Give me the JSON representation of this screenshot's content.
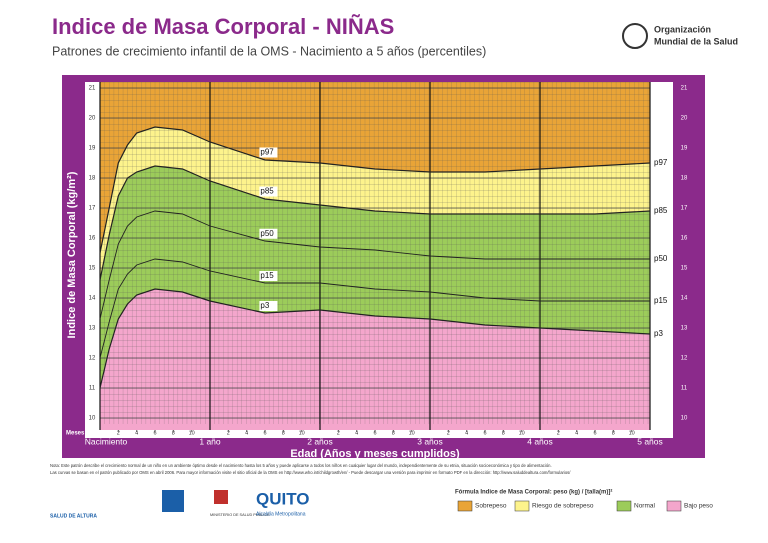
{
  "header": {
    "title": "Indice de Masa Corporal - NIÑAS",
    "subtitle": "Patrones de crecimiento infantil de la OMS - Nacimiento a 5 años (percentiles)",
    "org": [
      "Organización",
      "Mundial de la Salud"
    ]
  },
  "chart_data": {
    "type": "line",
    "y_label": "Indice de Masa Corporal (kg/m²)",
    "x_label": "Edad (Años y meses cumplidos)",
    "month_label": "Meses",
    "x": [
      0,
      1,
      2,
      3,
      4,
      6,
      9,
      12,
      18,
      24,
      30,
      36,
      42,
      48,
      54,
      60
    ],
    "xlim": [
      0,
      60
    ],
    "ylim": [
      10,
      21
    ],
    "xticks": [
      {
        "value": 0,
        "label": "Nacimiento"
      },
      {
        "value": 12,
        "label": "1 año"
      },
      {
        "value": 24,
        "label": "2 años"
      },
      {
        "value": 36,
        "label": "3 años"
      },
      {
        "value": 48,
        "label": "4 años"
      },
      {
        "value": 60,
        "label": "5 años"
      }
    ],
    "month_ticks": [
      2,
      4,
      6,
      8,
      10,
      {
        "value": 14,
        "label": "2"
      },
      {
        "value": 16,
        "label": "4"
      },
      {
        "value": 18,
        "label": "6"
      },
      {
        "value": 20,
        "label": "8"
      },
      {
        "value": 22,
        "label": "10"
      },
      {
        "value": 26,
        "label": "2"
      },
      {
        "value": 28,
        "label": "4"
      },
      {
        "value": 30,
        "label": "6"
      },
      {
        "value": 32,
        "label": "8"
      },
      {
        "value": 34,
        "label": "10"
      },
      {
        "value": 38,
        "label": "2"
      },
      {
        "value": 40,
        "label": "4"
      },
      {
        "value": 42,
        "label": "6"
      },
      {
        "value": 44,
        "label": "8"
      },
      {
        "value": 46,
        "label": "10"
      },
      {
        "value": 50,
        "label": "2"
      },
      {
        "value": 52,
        "label": "4"
      },
      {
        "value": 54,
        "label": "6"
      },
      {
        "value": 56,
        "label": "8"
      },
      {
        "value": 58,
        "label": "10"
      }
    ],
    "yticks": [
      10,
      11,
      12,
      13,
      14,
      15,
      16,
      17,
      18,
      19,
      20,
      21
    ],
    "background": "#e9a437",
    "grid": true,
    "series": [
      {
        "name": "p97",
        "color": "#222222",
        "fill": "#fdf38c",
        "values": [
          15.5,
          17.0,
          18.5,
          19.1,
          19.5,
          19.7,
          19.6,
          19.2,
          18.6,
          18.5,
          18.3,
          18.2,
          18.2,
          18.3,
          18.4,
          18.5
        ]
      },
      {
        "name": "p85",
        "color": "#222222",
        "fill": "#9ccc5a",
        "values": [
          14.6,
          16.1,
          17.4,
          18.0,
          18.2,
          18.4,
          18.3,
          17.9,
          17.3,
          17.1,
          16.9,
          16.8,
          16.8,
          16.8,
          16.8,
          16.9
        ]
      },
      {
        "name": "p50",
        "color": "#222222",
        "values": [
          13.3,
          14.6,
          15.8,
          16.4,
          16.7,
          16.9,
          16.8,
          16.4,
          15.9,
          15.7,
          15.6,
          15.4,
          15.3,
          15.3,
          15.3,
          15.3
        ]
      },
      {
        "name": "p15",
        "color": "#222222",
        "values": [
          12.0,
          13.2,
          14.3,
          14.8,
          15.1,
          15.3,
          15.2,
          14.9,
          14.5,
          14.5,
          14.3,
          14.2,
          14.0,
          13.9,
          13.9,
          13.9
        ]
      },
      {
        "name": "p3",
        "color": "#222222",
        "fill": "#f4a6cc",
        "values": [
          11.0,
          12.3,
          13.3,
          13.8,
          14.1,
          14.3,
          14.2,
          13.9,
          13.5,
          13.6,
          13.4,
          13.3,
          13.1,
          13.0,
          12.9,
          12.8
        ]
      }
    ],
    "legend": [
      {
        "label": "Sobrepeso",
        "color": "#e9a437"
      },
      {
        "label": "Riesgo de sobrepeso",
        "color": "#fdf38c"
      },
      {
        "label": "Normal",
        "color": "#9ccc5a"
      },
      {
        "label": "Bajo peso",
        "color": "#f4a6cc"
      }
    ]
  },
  "footer": {
    "notes": [
      "Nota: Este patrón describe el crecimiento normal de un niño en un ambiente óptimo desde el nacimiento hasta los 5 años y puede aplicarse a todos los niños en cualquier lugar del mundo, independientemente de su etnia, situación socioeconómica y tipo de alimentación.",
      "Las curvas se basan en el patrón publicado por OMS en abril 2006. Para mayor información visite el sitio oficial de la OMS en http://www.who.int/childgrowth/en/ - Puede descargar una versión para imprimir en formato PDF en la dirección: http://www.saluddealtura.com/formularios/"
    ],
    "formula": "Fórmula Indice de Masa Corporal: peso (kg) / [talla(m)]²",
    "logos": [
      "SALUD DE ALTURA",
      "MINISTERIO DE SALUD PÚBLICA",
      "QUITO",
      "Alcaldía Metropolitana"
    ]
  }
}
